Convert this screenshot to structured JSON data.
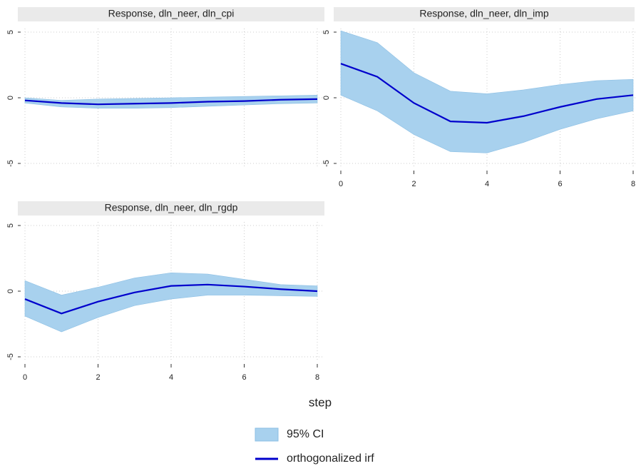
{
  "chart_data": [
    {
      "type": "line",
      "title": "Response, dln_neer, dln_cpi",
      "x": [
        0,
        1,
        2,
        3,
        4,
        5,
        6,
        7,
        8
      ],
      "xlim": [
        0,
        8
      ],
      "xticks": [
        0,
        2,
        4,
        6,
        8
      ],
      "show_xtick_labels": false,
      "ylim": [
        -5,
        5
      ],
      "yticks": [
        -5,
        0,
        5
      ],
      "grid": true,
      "series": [
        {
          "name": "95% CI",
          "color": "#a8d1ee",
          "upper": [
            0,
            -0.2,
            -0.1,
            -0.05,
            0,
            0.05,
            0.1,
            0.15,
            0.2
          ],
          "lower": [
            -0.4,
            -0.7,
            -0.8,
            -0.8,
            -0.75,
            -0.65,
            -0.55,
            -0.45,
            -0.4
          ]
        },
        {
          "name": "orthogonalized irf",
          "color": "#0000cc",
          "values": [
            -0.2,
            -0.4,
            -0.5,
            -0.45,
            -0.4,
            -0.3,
            -0.25,
            -0.15,
            -0.1
          ]
        }
      ]
    },
    {
      "type": "line",
      "title": "Response, dln_neer, dln_imp",
      "x": [
        0,
        1,
        2,
        3,
        4,
        5,
        6,
        7,
        8
      ],
      "xlim": [
        0,
        8
      ],
      "xticks": [
        0,
        2,
        4,
        6,
        8
      ],
      "show_xtick_labels": true,
      "ylim": [
        -5,
        5
      ],
      "yticks": [
        -5,
        0,
        5
      ],
      "grid": true,
      "series": [
        {
          "name": "95% CI",
          "color": "#a8d1ee",
          "upper": [
            5.1,
            4.2,
            1.9,
            0.5,
            0.3,
            0.6,
            1.0,
            1.3,
            1.4
          ],
          "lower": [
            0.2,
            -1.0,
            -2.8,
            -4.1,
            -4.2,
            -3.4,
            -2.4,
            -1.6,
            -1.0
          ]
        },
        {
          "name": "orthogonalized irf",
          "color": "#0000cc",
          "values": [
            2.6,
            1.6,
            -0.4,
            -1.8,
            -1.9,
            -1.4,
            -0.7,
            -0.1,
            0.2
          ]
        }
      ]
    },
    {
      "type": "line",
      "title": "Response, dln_neer, dln_rgdp",
      "x": [
        0,
        1,
        2,
        3,
        4,
        5,
        6,
        7,
        8
      ],
      "xlim": [
        0,
        8
      ],
      "xticks": [
        0,
        2,
        4,
        6,
        8
      ],
      "show_xtick_labels": true,
      "ylim": [
        -5,
        5
      ],
      "yticks": [
        -5,
        0,
        5
      ],
      "grid": true,
      "series": [
        {
          "name": "95% CI",
          "color": "#a8d1ee",
          "upper": [
            0.8,
            -0.3,
            0.3,
            1.0,
            1.4,
            1.3,
            0.9,
            0.5,
            0.4
          ],
          "lower": [
            -1.9,
            -3.1,
            -2.0,
            -1.1,
            -0.6,
            -0.3,
            -0.3,
            -0.35,
            -0.4
          ]
        },
        {
          "name": "orthogonalized irf",
          "color": "#0000cc",
          "values": [
            -0.6,
            -1.7,
            -0.8,
            -0.1,
            0.4,
            0.5,
            0.35,
            0.15,
            0
          ]
        }
      ]
    }
  ],
  "x_axis_title": "step"
}
